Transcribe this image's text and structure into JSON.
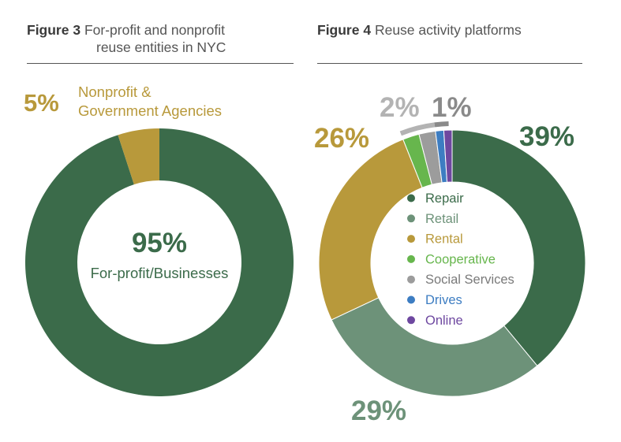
{
  "figure3": {
    "number": "Figure 3",
    "title_line1": "For-profit and nonprofit",
    "title_line2": "reuse entities in NYC"
  },
  "figure4": {
    "number": "Figure 4",
    "title": "Reuse activity platforms"
  },
  "chart_data": [
    {
      "type": "pie",
      "donut": true,
      "categories": [
        "For-profit/Businesses",
        "Nonprofit & Government Agencies"
      ],
      "values": [
        95,
        5
      ],
      "labels": [
        "95%",
        "5%"
      ],
      "center_value_label": "95%",
      "center_text": "For-profit/Businesses",
      "outside_label_lines": [
        "Nonprofit &",
        "Government Agencies"
      ],
      "colors": [
        "#3b6b4a",
        "#b8993b"
      ]
    },
    {
      "type": "pie",
      "donut": true,
      "categories": [
        "Repair",
        "Retail",
        "Rental",
        "Cooperative",
        "Social Services",
        "Drives",
        "Online"
      ],
      "values": [
        39,
        29,
        26,
        2,
        2,
        1,
        1
      ],
      "labels": {
        "repair": "39%",
        "retail": "29%",
        "rental": "26%",
        "small_group_a": "2%",
        "small_group_b": "1%"
      },
      "colors": [
        "#3b6b4a",
        "#6d9279",
        "#b8993b",
        "#67b64d",
        "#9c9c9c",
        "#3d7dc2",
        "#6e48a0"
      ],
      "legend": "center",
      "label_colors": {
        "repair": "#3b6b4a",
        "retail": "#6d9279",
        "rental": "#b8993b",
        "small_a": "#b3b3b3",
        "small_b": "#8a8a8a"
      }
    }
  ]
}
